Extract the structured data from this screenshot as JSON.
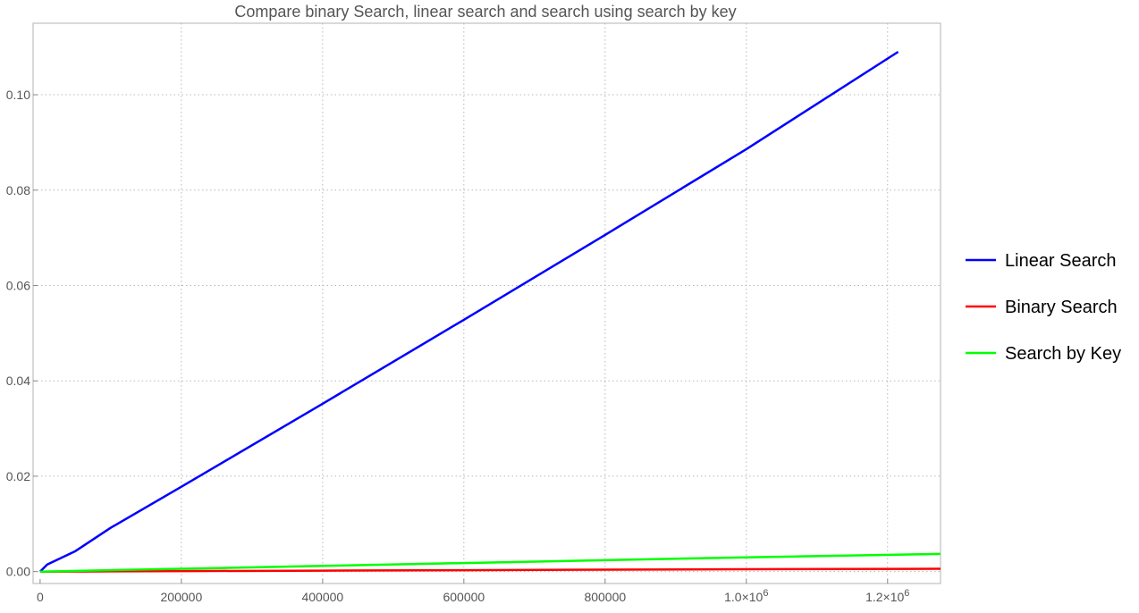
{
  "chart_data": {
    "type": "line",
    "title": "Compare binary Search, linear search and search using search by key",
    "xlabel": "",
    "ylabel": "",
    "xlim": [
      -10000,
      1275000
    ],
    "ylim": [
      -0.0025,
      0.115
    ],
    "grid": true,
    "legend_position": "right",
    "x_ticks": [
      {
        "value": 0,
        "label": "0"
      },
      {
        "value": 200000,
        "label": "200000"
      },
      {
        "value": 400000,
        "label": "400000"
      },
      {
        "value": 600000,
        "label": "600000"
      },
      {
        "value": 800000,
        "label": "800000"
      },
      {
        "value": 1000000,
        "label": "1.0×10",
        "exp": "6"
      },
      {
        "value": 1200000,
        "label": "1.2×10",
        "exp": "6"
      }
    ],
    "y_ticks": [
      {
        "value": 0,
        "label": "0.00"
      },
      {
        "value": 0.02,
        "label": "0.02"
      },
      {
        "value": 0.04,
        "label": "0.04"
      },
      {
        "value": 0.06,
        "label": "0.06"
      },
      {
        "value": 0.08,
        "label": "0.08"
      },
      {
        "value": 0.1,
        "label": "0.10"
      }
    ],
    "series": [
      {
        "name": "Linear Search",
        "color": "#0000ff",
        "x": [
          0,
          10000,
          50000,
          100000,
          200000,
          400000,
          600000,
          800000,
          1000000,
          1215000
        ],
        "y": [
          0.0,
          0.0015,
          0.0043,
          0.0092,
          0.0178,
          0.0352,
          0.0528,
          0.0706,
          0.0886,
          0.109
        ]
      },
      {
        "name": "Binary Search",
        "color": "#ff0000",
        "x": [
          0,
          200000,
          400000,
          600000,
          800000,
          1000000,
          1275000
        ],
        "y": [
          0.0,
          0.0001,
          0.0002,
          0.0003,
          0.0004,
          0.0005,
          0.0006
        ]
      },
      {
        "name": "Search by Key",
        "color": "#00ff00",
        "x": [
          0,
          200000,
          400000,
          600000,
          800000,
          1000000,
          1275000
        ],
        "y": [
          0.0,
          0.0006,
          0.0012,
          0.0018,
          0.0024,
          0.003,
          0.0037
        ]
      }
    ]
  }
}
